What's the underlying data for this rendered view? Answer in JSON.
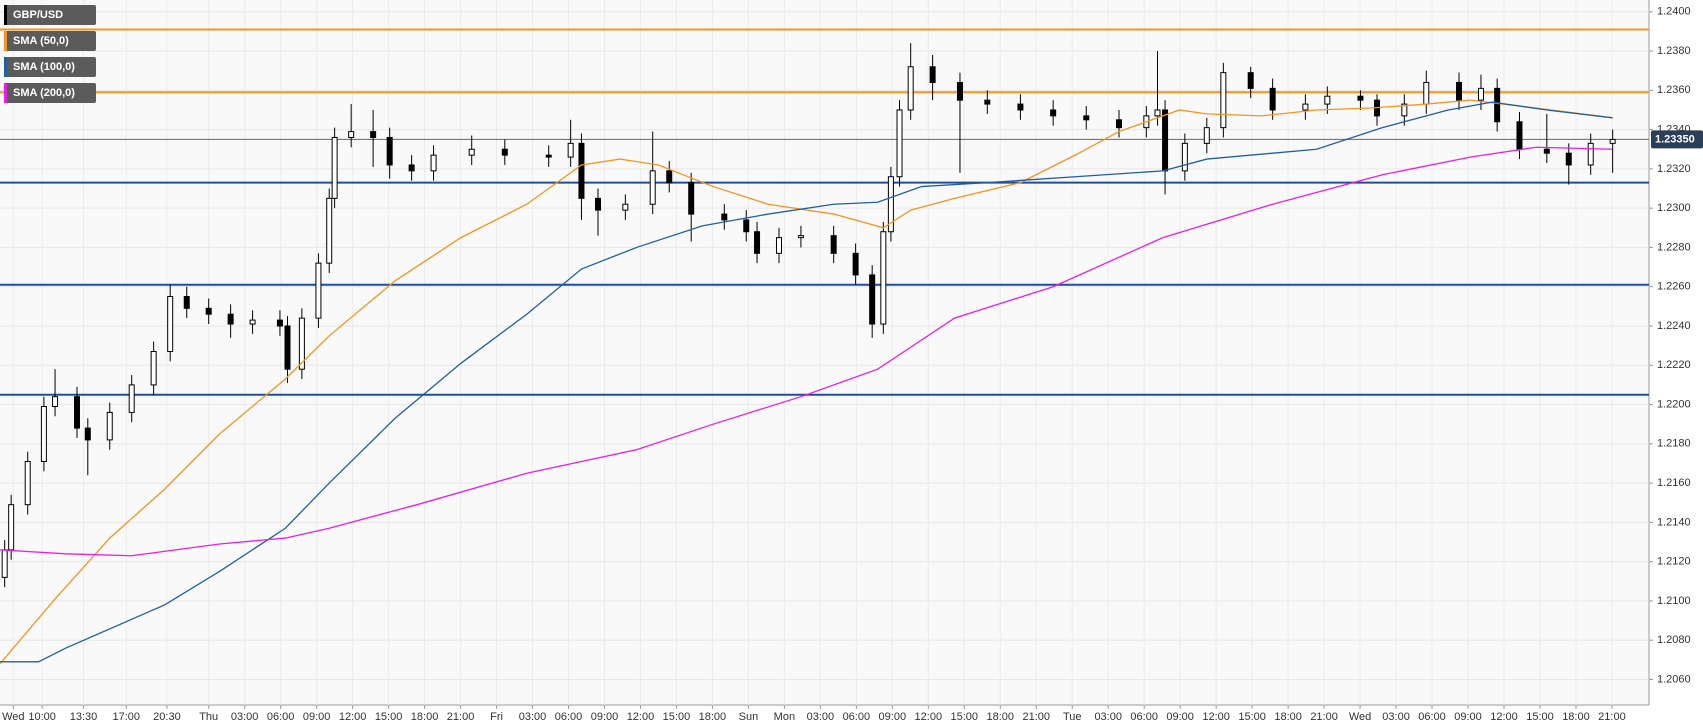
{
  "chart_data": {
    "type": "candlestick",
    "ylim": [
      1.2047,
      1.2406
    ],
    "yticks": [
      {
        "value": 1.206,
        "label": "1.2060"
      },
      {
        "value": 1.208,
        "label": "1.2080"
      },
      {
        "value": 1.21,
        "label": "1.2100"
      },
      {
        "value": 1.212,
        "label": "1.2120"
      },
      {
        "value": 1.214,
        "label": "1.2140"
      },
      {
        "value": 1.216,
        "label": "1.2160"
      },
      {
        "value": 1.218,
        "label": "1.2180"
      },
      {
        "value": 1.22,
        "label": "1.2200"
      },
      {
        "value": 1.222,
        "label": "1.2220"
      },
      {
        "value": 1.224,
        "label": "1.2240"
      },
      {
        "value": 1.226,
        "label": "1.2260"
      },
      {
        "value": 1.228,
        "label": "1.2280"
      },
      {
        "value": 1.23,
        "label": "1.2300"
      },
      {
        "value": 1.232,
        "label": "1.2320"
      },
      {
        "value": 1.234,
        "label": "1.2340"
      },
      {
        "value": 1.236,
        "label": "1.2360"
      },
      {
        "value": 1.238,
        "label": "1.2380"
      },
      {
        "value": 1.24,
        "label": "1.2400"
      }
    ],
    "xlim": [
      -0.37,
      45.46
    ],
    "xticks": [
      {
        "value": 0,
        "label": "Wed"
      },
      {
        "value": 0.8,
        "label": "10:00"
      },
      {
        "value": 1.95,
        "label": "13:30"
      },
      {
        "value": 3.14,
        "label": "17:00"
      },
      {
        "value": 4.27,
        "label": "20:30"
      },
      {
        "value": 5.43,
        "label": "Thu"
      },
      {
        "value": 6.43,
        "label": "03:00"
      },
      {
        "value": 7.43,
        "label": "06:00"
      },
      {
        "value": 8.43,
        "label": "09:00"
      },
      {
        "value": 9.43,
        "label": "12:00"
      },
      {
        "value": 10.43,
        "label": "15:00"
      },
      {
        "value": 11.43,
        "label": "18:00"
      },
      {
        "value": 12.43,
        "label": "21:00"
      },
      {
        "value": 13.43,
        "label": "Fri"
      },
      {
        "value": 14.43,
        "label": "03:00"
      },
      {
        "value": 15.43,
        "label": "06:00"
      },
      {
        "value": 16.43,
        "label": "09:00"
      },
      {
        "value": 17.43,
        "label": "12:00"
      },
      {
        "value": 18.43,
        "label": "15:00"
      },
      {
        "value": 19.43,
        "label": "18:00"
      },
      {
        "value": 20.43,
        "label": "Sun"
      },
      {
        "value": 21.43,
        "label": "Mon"
      },
      {
        "value": 22.43,
        "label": "03:00"
      },
      {
        "value": 23.43,
        "label": "06:00"
      },
      {
        "value": 24.43,
        "label": "09:00"
      },
      {
        "value": 25.43,
        "label": "12:00"
      },
      {
        "value": 26.43,
        "label": "15:00"
      },
      {
        "value": 27.43,
        "label": "18:00"
      },
      {
        "value": 28.43,
        "label": "21:00"
      },
      {
        "value": 29.43,
        "label": "Tue"
      },
      {
        "value": 30.43,
        "label": "03:00"
      },
      {
        "value": 31.43,
        "label": "06:00"
      },
      {
        "value": 32.43,
        "label": "09:00"
      },
      {
        "value": 33.43,
        "label": "12:00"
      },
      {
        "value": 34.43,
        "label": "15:00"
      },
      {
        "value": 35.43,
        "label": "18:00"
      },
      {
        "value": 36.43,
        "label": "21:00"
      },
      {
        "value": 37.43,
        "label": "Wed"
      },
      {
        "value": 38.43,
        "label": "03:00"
      },
      {
        "value": 39.43,
        "label": "06:00"
      },
      {
        "value": 40.43,
        "label": "09:00"
      },
      {
        "value": 41.43,
        "label": "12:00"
      },
      {
        "value": 42.43,
        "label": "15:00"
      },
      {
        "value": 43.43,
        "label": "18:00"
      },
      {
        "value": 44.43,
        "label": "21:00"
      }
    ],
    "grid": true,
    "series": [
      {
        "name": "GBP/USD",
        "color": "#000000",
        "x": [
          -0.24,
          -0.06,
          0.4,
          0.85,
          1.16,
          1.77,
          2.07,
          2.68,
          3.29,
          3.9,
          4.36,
          4.82,
          5.43,
          6.04,
          6.65,
          7.41,
          7.62,
          8.02,
          8.48,
          8.78,
          8.93,
          9.39,
          10,
          10.46,
          11.07,
          11.68,
          12.74,
          13.66,
          14.88,
          15.49,
          15.79,
          16.25,
          17.01,
          17.77,
          18.23,
          18.84,
          19.76,
          20.37,
          20.67,
          21.28,
          21.89,
          22.8,
          23.41,
          23.87,
          24.18,
          24.39,
          24.63,
          24.94,
          25.55,
          26.31,
          27.07,
          27.99,
          28.9,
          29.82,
          30.73,
          31.49,
          31.8,
          32.01,
          32.56,
          33.17,
          33.63,
          34.39,
          35.0,
          35.91,
          36.52,
          37.44,
          37.9,
          38.66,
          39.27,
          40.18,
          40.79,
          41.24,
          41.86,
          42.62,
          43.23,
          43.84,
          44.45
        ],
        "open": [
          1.2112,
          1.2126,
          1.2149,
          1.2171,
          1.2199,
          1.2204,
          1.2188,
          1.2182,
          1.2196,
          1.221,
          1.2227,
          1.2255,
          1.2249,
          1.2246,
          1.2241,
          1.2243,
          1.224,
          1.2218,
          1.2244,
          1.2272,
          1.2305,
          1.2336,
          1.2339,
          1.2336,
          1.2322,
          1.2319,
          1.2327,
          1.233,
          1.2327,
          1.2326,
          1.2333,
          1.2305,
          1.2299,
          1.2302,
          1.2319,
          1.2313,
          1.2297,
          1.2294,
          1.2288,
          1.2277,
          1.2285,
          1.2286,
          1.2277,
          1.2266,
          1.2241,
          1.2288,
          1.2316,
          1.235,
          1.2372,
          1.2364,
          1.2355,
          1.2353,
          1.235,
          1.2347,
          1.2345,
          1.2341,
          1.2347,
          1.235,
          1.2319,
          1.2333,
          1.2341,
          1.2369,
          1.2361,
          1.235,
          1.2353,
          1.2357,
          1.2355,
          1.2347,
          1.2353,
          1.2364,
          1.2355,
          1.2361,
          1.2344,
          1.233,
          1.2328,
          1.2322,
          1.2333
        ],
        "high": [
          1.2131,
          1.2154,
          1.2176,
          1.2204,
          1.2218,
          1.2209,
          1.2193,
          1.2201,
          1.2215,
          1.2232,
          1.2261,
          1.226,
          1.2254,
          1.2251,
          1.2248,
          1.2248,
          1.2245,
          1.2249,
          1.2277,
          1.231,
          1.2341,
          1.2353,
          1.235,
          1.2341,
          1.2327,
          1.2332,
          1.2337,
          1.2335,
          1.2332,
          1.2345,
          1.2338,
          1.231,
          1.2307,
          1.2339,
          1.2324,
          1.2318,
          1.2302,
          1.2299,
          1.2293,
          1.229,
          1.2291,
          1.2291,
          1.2282,
          1.2271,
          1.2293,
          1.2321,
          1.2355,
          1.2384,
          1.2378,
          1.2369,
          1.236,
          1.2358,
          1.2355,
          1.2352,
          1.235,
          1.2352,
          1.238,
          1.2355,
          1.2338,
          1.2346,
          1.2374,
          1.2372,
          1.2366,
          1.2358,
          1.2362,
          1.236,
          1.2358,
          1.2358,
          1.237,
          1.2369,
          1.2368,
          1.2366,
          1.2349,
          1.2348,
          1.2333,
          1.2338,
          1.234
        ],
        "low": [
          1.2107,
          1.2121,
          1.2144,
          1.2166,
          1.2194,
          1.2183,
          1.2164,
          1.2177,
          1.2191,
          1.2205,
          1.2222,
          1.2244,
          1.2241,
          1.2234,
          1.2236,
          1.2235,
          1.2211,
          1.2213,
          1.2239,
          1.2267,
          1.23,
          1.2331,
          1.2321,
          1.2315,
          1.2314,
          1.2314,
          1.2322,
          1.2322,
          1.2321,
          1.2321,
          1.2294,
          1.2286,
          1.2294,
          1.2297,
          1.2308,
          1.2283,
          1.2289,
          1.2283,
          1.2272,
          1.2272,
          1.228,
          1.2272,
          1.2261,
          1.2234,
          1.2236,
          1.2283,
          1.2311,
          1.2345,
          1.2355,
          1.2318,
          1.2348,
          1.2345,
          1.2342,
          1.234,
          1.2336,
          1.2336,
          1.2342,
          1.2307,
          1.2314,
          1.2328,
          1.2336,
          1.2356,
          1.2345,
          1.2345,
          1.2348,
          1.235,
          1.2342,
          1.2342,
          1.2348,
          1.235,
          1.235,
          1.2339,
          1.2325,
          1.2323,
          1.2312,
          1.2317,
          1.2318
        ],
        "close": [
          1.2126,
          1.2149,
          1.2171,
          1.2199,
          1.2204,
          1.2188,
          1.2182,
          1.2196,
          1.221,
          1.2227,
          1.2255,
          1.2249,
          1.2246,
          1.2241,
          1.2243,
          1.224,
          1.2218,
          1.2244,
          1.2272,
          1.2305,
          1.2336,
          1.2339,
          1.2336,
          1.2322,
          1.2319,
          1.2327,
          1.233,
          1.2327,
          1.2326,
          1.2333,
          1.2305,
          1.2299,
          1.2302,
          1.2319,
          1.2313,
          1.2297,
          1.2294,
          1.2288,
          1.2277,
          1.2285,
          1.2286,
          1.2277,
          1.2266,
          1.2241,
          1.2288,
          1.2316,
          1.235,
          1.2372,
          1.2364,
          1.2355,
          1.2353,
          1.235,
          1.2347,
          1.2345,
          1.2341,
          1.2347,
          1.235,
          1.2319,
          1.2333,
          1.2341,
          1.2369,
          1.2361,
          1.235,
          1.2353,
          1.2357,
          1.2355,
          1.2347,
          1.2353,
          1.2364,
          1.2355,
          1.2361,
          1.2344,
          1.233,
          1.2328,
          1.2322,
          1.2333,
          1.2335
        ]
      },
      {
        "name": "SMA (50,0)",
        "color": "#f7931e",
        "x": [
          -0.37,
          1.16,
          2.68,
          4.21,
          5.73,
          7.56,
          8.78,
          10.61,
          12.44,
          14.27,
          15.79,
          16.86,
          17.93,
          19.45,
          20.98,
          22.8,
          24.18,
          24.94,
          26.16,
          27.99,
          29.51,
          30.73,
          32.41,
          33.17,
          34.7,
          36.22,
          37.74,
          39.27,
          40.49,
          42.32,
          44.45
        ],
        "values": [
          1.2068,
          1.2101,
          1.2132,
          1.2157,
          1.2185,
          1.2213,
          1.2235,
          1.2263,
          1.2285,
          1.2302,
          1.2322,
          1.2325,
          1.2322,
          1.2311,
          1.2302,
          1.2297,
          1.229,
          1.2299,
          1.2305,
          1.2313,
          1.2327,
          1.2339,
          1.235,
          1.2348,
          1.2347,
          1.235,
          1.2351,
          1.2353,
          1.2355,
          1.2351,
          1.2346
        ]
      },
      {
        "name": "SMA (100,0)",
        "color": "#1f5fa8",
        "x": [
          -0.37,
          0.7,
          1.46,
          4.21,
          5.73,
          7.56,
          8.78,
          10.61,
          12.44,
          14.27,
          15.79,
          17.32,
          19.15,
          20.98,
          22.8,
          24.02,
          25.24,
          27.07,
          29.51,
          31.95,
          33.17,
          36.22,
          38.05,
          39.88,
          41.1,
          42.62,
          44.45
        ],
        "values": [
          1.2069,
          1.2069,
          1.2076,
          1.2098,
          1.2115,
          1.2137,
          1.216,
          1.2193,
          1.2221,
          1.2246,
          1.2269,
          1.228,
          1.2291,
          1.2297,
          1.2302,
          1.2303,
          1.2311,
          1.2313,
          1.2316,
          1.2319,
          1.2325,
          1.233,
          1.2341,
          1.235,
          1.2354,
          1.235,
          1.2346
        ]
      },
      {
        "name": "SMA (200,0)",
        "color": "#e81ee8",
        "x": [
          -0.37,
          1.46,
          3.29,
          5.73,
          7.56,
          8.78,
          11.22,
          14.27,
          17.32,
          19.45,
          21.89,
          24.02,
          26.16,
          28.9,
          31.95,
          35.0,
          38.05,
          40.49,
          42.32,
          44.45
        ],
        "values": [
          1.2126,
          1.2124,
          1.2123,
          1.2129,
          1.2132,
          1.2137,
          1.2149,
          1.2165,
          1.2177,
          1.219,
          1.2204,
          1.2218,
          1.2244,
          1.226,
          1.2285,
          1.2302,
          1.2317,
          1.2326,
          1.2331,
          1.233
        ]
      }
    ],
    "levels": [
      {
        "value": 1.2391,
        "color": "#f7931e"
      },
      {
        "value": 1.2359,
        "color": "#f7931e"
      },
      {
        "value": 1.2313,
        "color": "#1e4f9c"
      },
      {
        "value": 1.2261,
        "color": "#1e4f9c"
      },
      {
        "value": 1.2205,
        "color": "#1e4f9c"
      }
    ],
    "last_price": {
      "value": 1.2335,
      "value_label": "1.23350",
      "color": "#2b3e57"
    }
  }
}
